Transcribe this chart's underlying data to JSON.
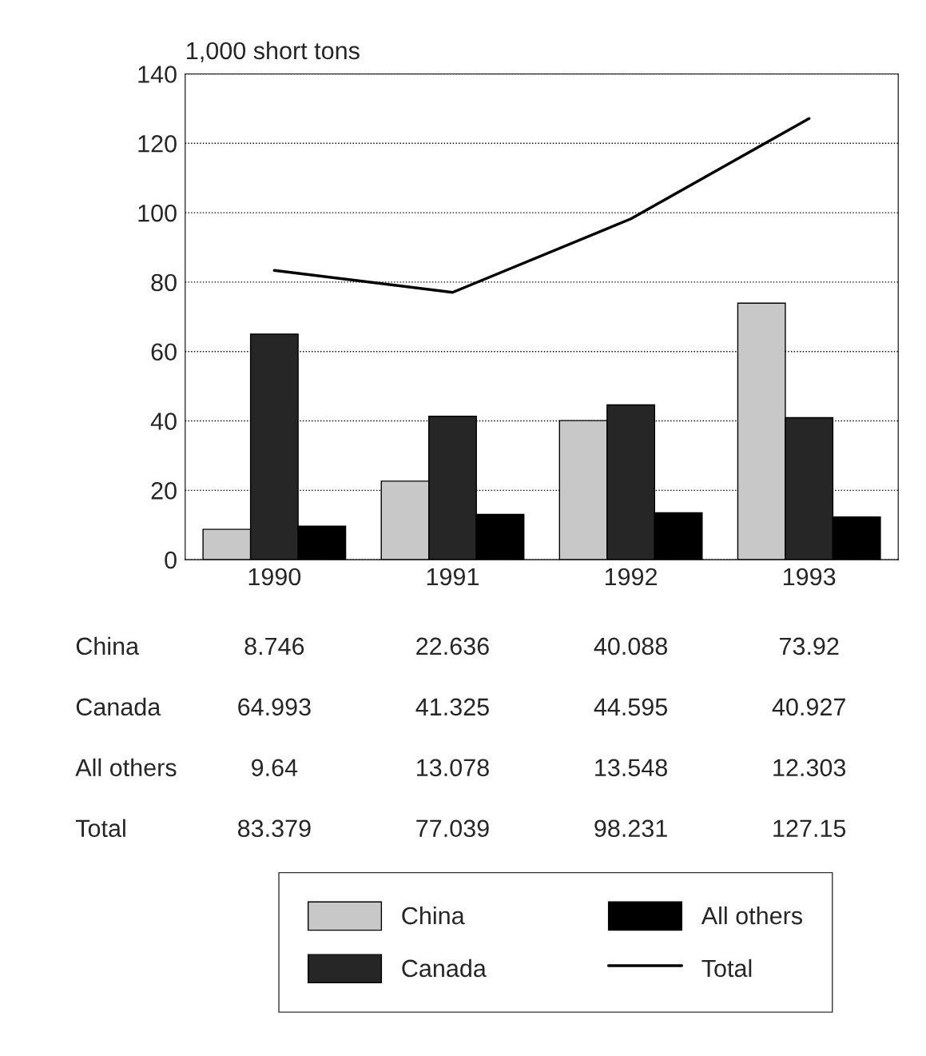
{
  "chart_data": {
    "type": "bar",
    "ylabel": "1,000 short tons",
    "categories": [
      "1990",
      "1991",
      "1992",
      "1993"
    ],
    "series": [
      {
        "name": "China",
        "color": "#c8c8c8",
        "values": [
          8.746,
          22.636,
          40.088,
          73.92
        ]
      },
      {
        "name": "Canada",
        "color": "#262626",
        "values": [
          64.993,
          41.325,
          44.595,
          40.927
        ]
      },
      {
        "name": "All others",
        "color": "#000000",
        "values": [
          9.64,
          13.078,
          13.548,
          12.303
        ]
      },
      {
        "name": "Total",
        "type": "line",
        "color": "#000000",
        "values": [
          83.379,
          77.039,
          98.231,
          127.15
        ]
      }
    ],
    "ylim": [
      0,
      140
    ],
    "yticks": [
      0,
      20,
      40,
      60,
      80,
      100,
      120,
      140
    ],
    "grid": "y",
    "legend": "bottom",
    "data_labels": true,
    "marker": "none",
    "line_style": "solid"
  }
}
